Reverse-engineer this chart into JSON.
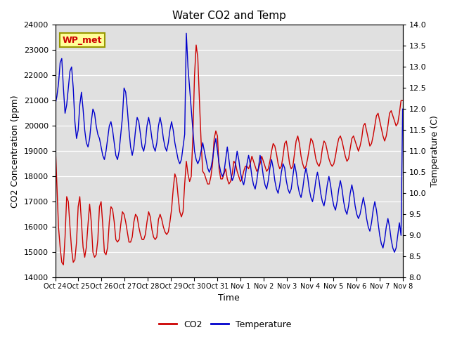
{
  "title": "Water CO2 and Temp",
  "xlabel": "Time",
  "ylabel_left": "CO2 Concentration (ppm)",
  "ylabel_right": "Temperature (C)",
  "ylim_left": [
    14000,
    24000
  ],
  "ylim_right": [
    8.0,
    14.0
  ],
  "yticks_left": [
    14000,
    15000,
    16000,
    17000,
    18000,
    19000,
    20000,
    21000,
    22000,
    23000,
    24000
  ],
  "yticks_right": [
    8.0,
    8.5,
    9.0,
    9.5,
    10.0,
    10.5,
    11.0,
    11.5,
    12.0,
    12.5,
    13.0,
    13.5,
    14.0
  ],
  "xtick_labels": [
    "Oct 24",
    "Oct 25",
    "Oct 26",
    "Oct 27",
    "Oct 28",
    "Oct 29",
    "Oct 30",
    "Oct 31",
    "Nov 1",
    "Nov 2",
    "Nov 3",
    "Nov 4",
    "Nov 5",
    "Nov 6",
    "Nov 7",
    "Nov 8"
  ],
  "co2_color": "#cc0000",
  "temp_color": "#0000cc",
  "plot_bg_color": "#e0e0e0",
  "fig_bg_color": "#ffffff",
  "annotation_text": "WP_met",
  "annotation_bg": "#ffff99",
  "annotation_border": "#999900",
  "annotation_text_color": "#cc0000",
  "legend_co2": "CO2",
  "legend_temp": "Temperature",
  "title_fontsize": 11,
  "axis_fontsize": 9,
  "tick_fontsize": 8,
  "co2_data": [
    19400,
    17700,
    16000,
    15200,
    14600,
    14500,
    15600,
    17200,
    17000,
    16000,
    15100,
    14600,
    14700,
    15400,
    16800,
    17200,
    16200,
    15200,
    14800,
    15200,
    16100,
    16900,
    16200,
    15000,
    14800,
    14900,
    15500,
    16800,
    17000,
    16100,
    15000,
    14900,
    15200,
    16200,
    16800,
    16700,
    16200,
    15500,
    15400,
    15500,
    16100,
    16600,
    16500,
    16200,
    15800,
    15400,
    15400,
    15600,
    16200,
    16500,
    16400,
    16000,
    15700,
    15500,
    15500,
    15700,
    16200,
    16600,
    16400,
    15900,
    15600,
    15500,
    15600,
    16300,
    16500,
    16300,
    16000,
    15800,
    15700,
    15800,
    16200,
    16700,
    17500,
    18100,
    17900,
    17200,
    16600,
    16400,
    16600,
    17700,
    18600,
    18100,
    17800,
    18000,
    19600,
    22000,
    23200,
    22700,
    21000,
    19400,
    18200,
    18100,
    17900,
    17700,
    17700,
    18000,
    18500,
    19500,
    19800,
    19600,
    18300,
    17900,
    17900,
    18100,
    18300,
    17900,
    17700,
    17800,
    18100,
    18600,
    18500,
    18200,
    18000,
    17800,
    17900,
    18200,
    18400,
    18400,
    18300,
    18500,
    18800,
    18600,
    18400,
    18200,
    18300,
    18500,
    18800,
    18600,
    18400,
    18200,
    18300,
    18600,
    19000,
    19300,
    19200,
    18900,
    18500,
    18300,
    18400,
    18800,
    19300,
    19400,
    19000,
    18500,
    18300,
    18400,
    18900,
    19400,
    19600,
    19300,
    18800,
    18500,
    18300,
    18400,
    18700,
    19100,
    19500,
    19400,
    19100,
    18700,
    18500,
    18400,
    18600,
    19100,
    19400,
    19300,
    19000,
    18700,
    18500,
    18400,
    18500,
    18800,
    19200,
    19500,
    19600,
    19400,
    19100,
    18800,
    18600,
    18700,
    19100,
    19500,
    19600,
    19400,
    19200,
    19000,
    19200,
    19500,
    20000,
    20100,
    19800,
    19500,
    19200,
    19300,
    19600,
    20000,
    20400,
    20500,
    20200,
    19900,
    19600,
    19400,
    19600,
    20000,
    20500,
    20600,
    20400,
    20200,
    20000,
    20100,
    20500,
    21000,
    21000
  ],
  "temp_data": [
    12.1,
    12.3,
    12.6,
    13.1,
    13.2,
    12.5,
    11.9,
    12.1,
    12.5,
    12.9,
    13.0,
    12.5,
    11.7,
    11.3,
    11.5,
    12.1,
    12.4,
    12.0,
    11.5,
    11.2,
    11.1,
    11.3,
    11.7,
    12.0,
    11.9,
    11.6,
    11.4,
    11.3,
    11.1,
    10.9,
    10.8,
    11.0,
    11.3,
    11.6,
    11.7,
    11.5,
    11.2,
    10.9,
    10.8,
    11.0,
    11.4,
    11.8,
    12.5,
    12.4,
    12.0,
    11.5,
    11.1,
    10.9,
    11.1,
    11.5,
    11.8,
    11.7,
    11.4,
    11.1,
    11.0,
    11.2,
    11.6,
    11.8,
    11.6,
    11.3,
    11.1,
    11.0,
    11.2,
    11.6,
    11.8,
    11.6,
    11.3,
    11.1,
    11.0,
    11.2,
    11.5,
    11.7,
    11.5,
    11.2,
    11.0,
    10.8,
    10.7,
    10.8,
    11.1,
    11.4,
    13.8,
    13.0,
    12.5,
    12.0,
    11.5,
    11.0,
    10.8,
    10.7,
    10.8,
    11.0,
    11.2,
    11.0,
    10.8,
    10.6,
    10.5,
    10.6,
    10.8,
    11.1,
    11.3,
    11.0,
    10.7,
    10.5,
    10.4,
    10.5,
    10.8,
    11.1,
    10.8,
    10.5,
    10.3,
    10.4,
    10.7,
    11.0,
    10.8,
    10.5,
    10.3,
    10.2,
    10.4,
    10.7,
    10.9,
    10.7,
    10.4,
    10.2,
    10.1,
    10.3,
    10.6,
    10.9,
    10.7,
    10.4,
    10.2,
    10.1,
    10.3,
    10.6,
    10.8,
    10.6,
    10.3,
    10.1,
    10.0,
    10.2,
    10.5,
    10.7,
    10.6,
    10.3,
    10.1,
    10.0,
    10.1,
    10.4,
    10.7,
    10.5,
    10.2,
    10.0,
    9.9,
    10.1,
    10.4,
    10.6,
    10.4,
    10.1,
    9.9,
    9.8,
    10.0,
    10.3,
    10.5,
    10.3,
    10.0,
    9.8,
    9.7,
    9.9,
    10.2,
    10.4,
    10.2,
    9.9,
    9.7,
    9.6,
    9.8,
    10.1,
    10.3,
    10.1,
    9.8,
    9.6,
    9.5,
    9.7,
    10.0,
    10.2,
    10.0,
    9.7,
    9.5,
    9.4,
    9.5,
    9.7,
    9.9,
    9.7,
    9.4,
    9.2,
    9.1,
    9.3,
    9.6,
    9.8,
    9.6,
    9.3,
    9.0,
    8.8,
    8.7,
    8.9,
    9.2,
    9.4,
    9.2,
    8.9,
    8.7,
    8.6,
    8.7,
    9.0,
    9.3,
    9.0,
    12.0
  ]
}
